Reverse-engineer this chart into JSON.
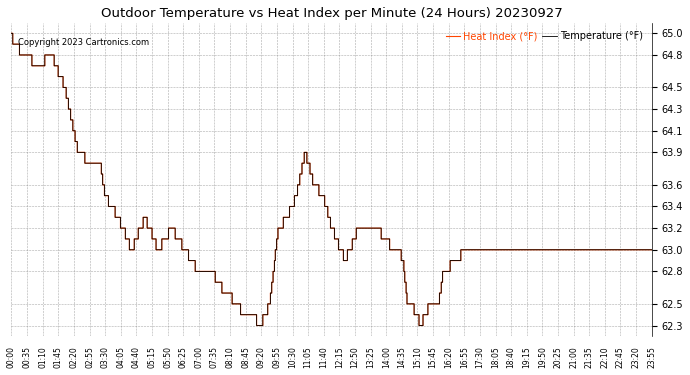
{
  "title": "Outdoor Temperature vs Heat Index per Minute (24 Hours) 20230927",
  "copyright": "Copyright 2023 Cartronics.com",
  "legend_heat": "Heat Index (°F)",
  "legend_temp": "Temperature (°F)",
  "heat_color": "#ff4500",
  "temp_color": "#000000",
  "background_color": "#ffffff",
  "grid_color": "#888888",
  "ylim_min": 62.2,
  "ylim_max": 65.1,
  "yticks": [
    62.3,
    62.5,
    62.8,
    63.0,
    63.2,
    63.4,
    63.6,
    63.9,
    64.1,
    64.3,
    64.5,
    64.8,
    65.0
  ],
  "xtick_labels": [
    "00:00",
    "00:35",
    "01:10",
    "01:45",
    "02:20",
    "02:55",
    "03:30",
    "04:05",
    "04:40",
    "05:15",
    "05:50",
    "06:25",
    "07:00",
    "07:35",
    "08:10",
    "08:45",
    "09:20",
    "09:55",
    "10:30",
    "11:05",
    "11:40",
    "12:15",
    "12:50",
    "13:25",
    "14:00",
    "14:35",
    "15:10",
    "15:45",
    "16:20",
    "16:55",
    "17:30",
    "18:05",
    "18:40",
    "19:15",
    "19:50",
    "20:25",
    "21:00",
    "21:35",
    "22:10",
    "22:45",
    "23:20",
    "23:55"
  ],
  "num_minutes": 1440,
  "figsize": [
    6.9,
    3.75
  ],
  "dpi": 100
}
